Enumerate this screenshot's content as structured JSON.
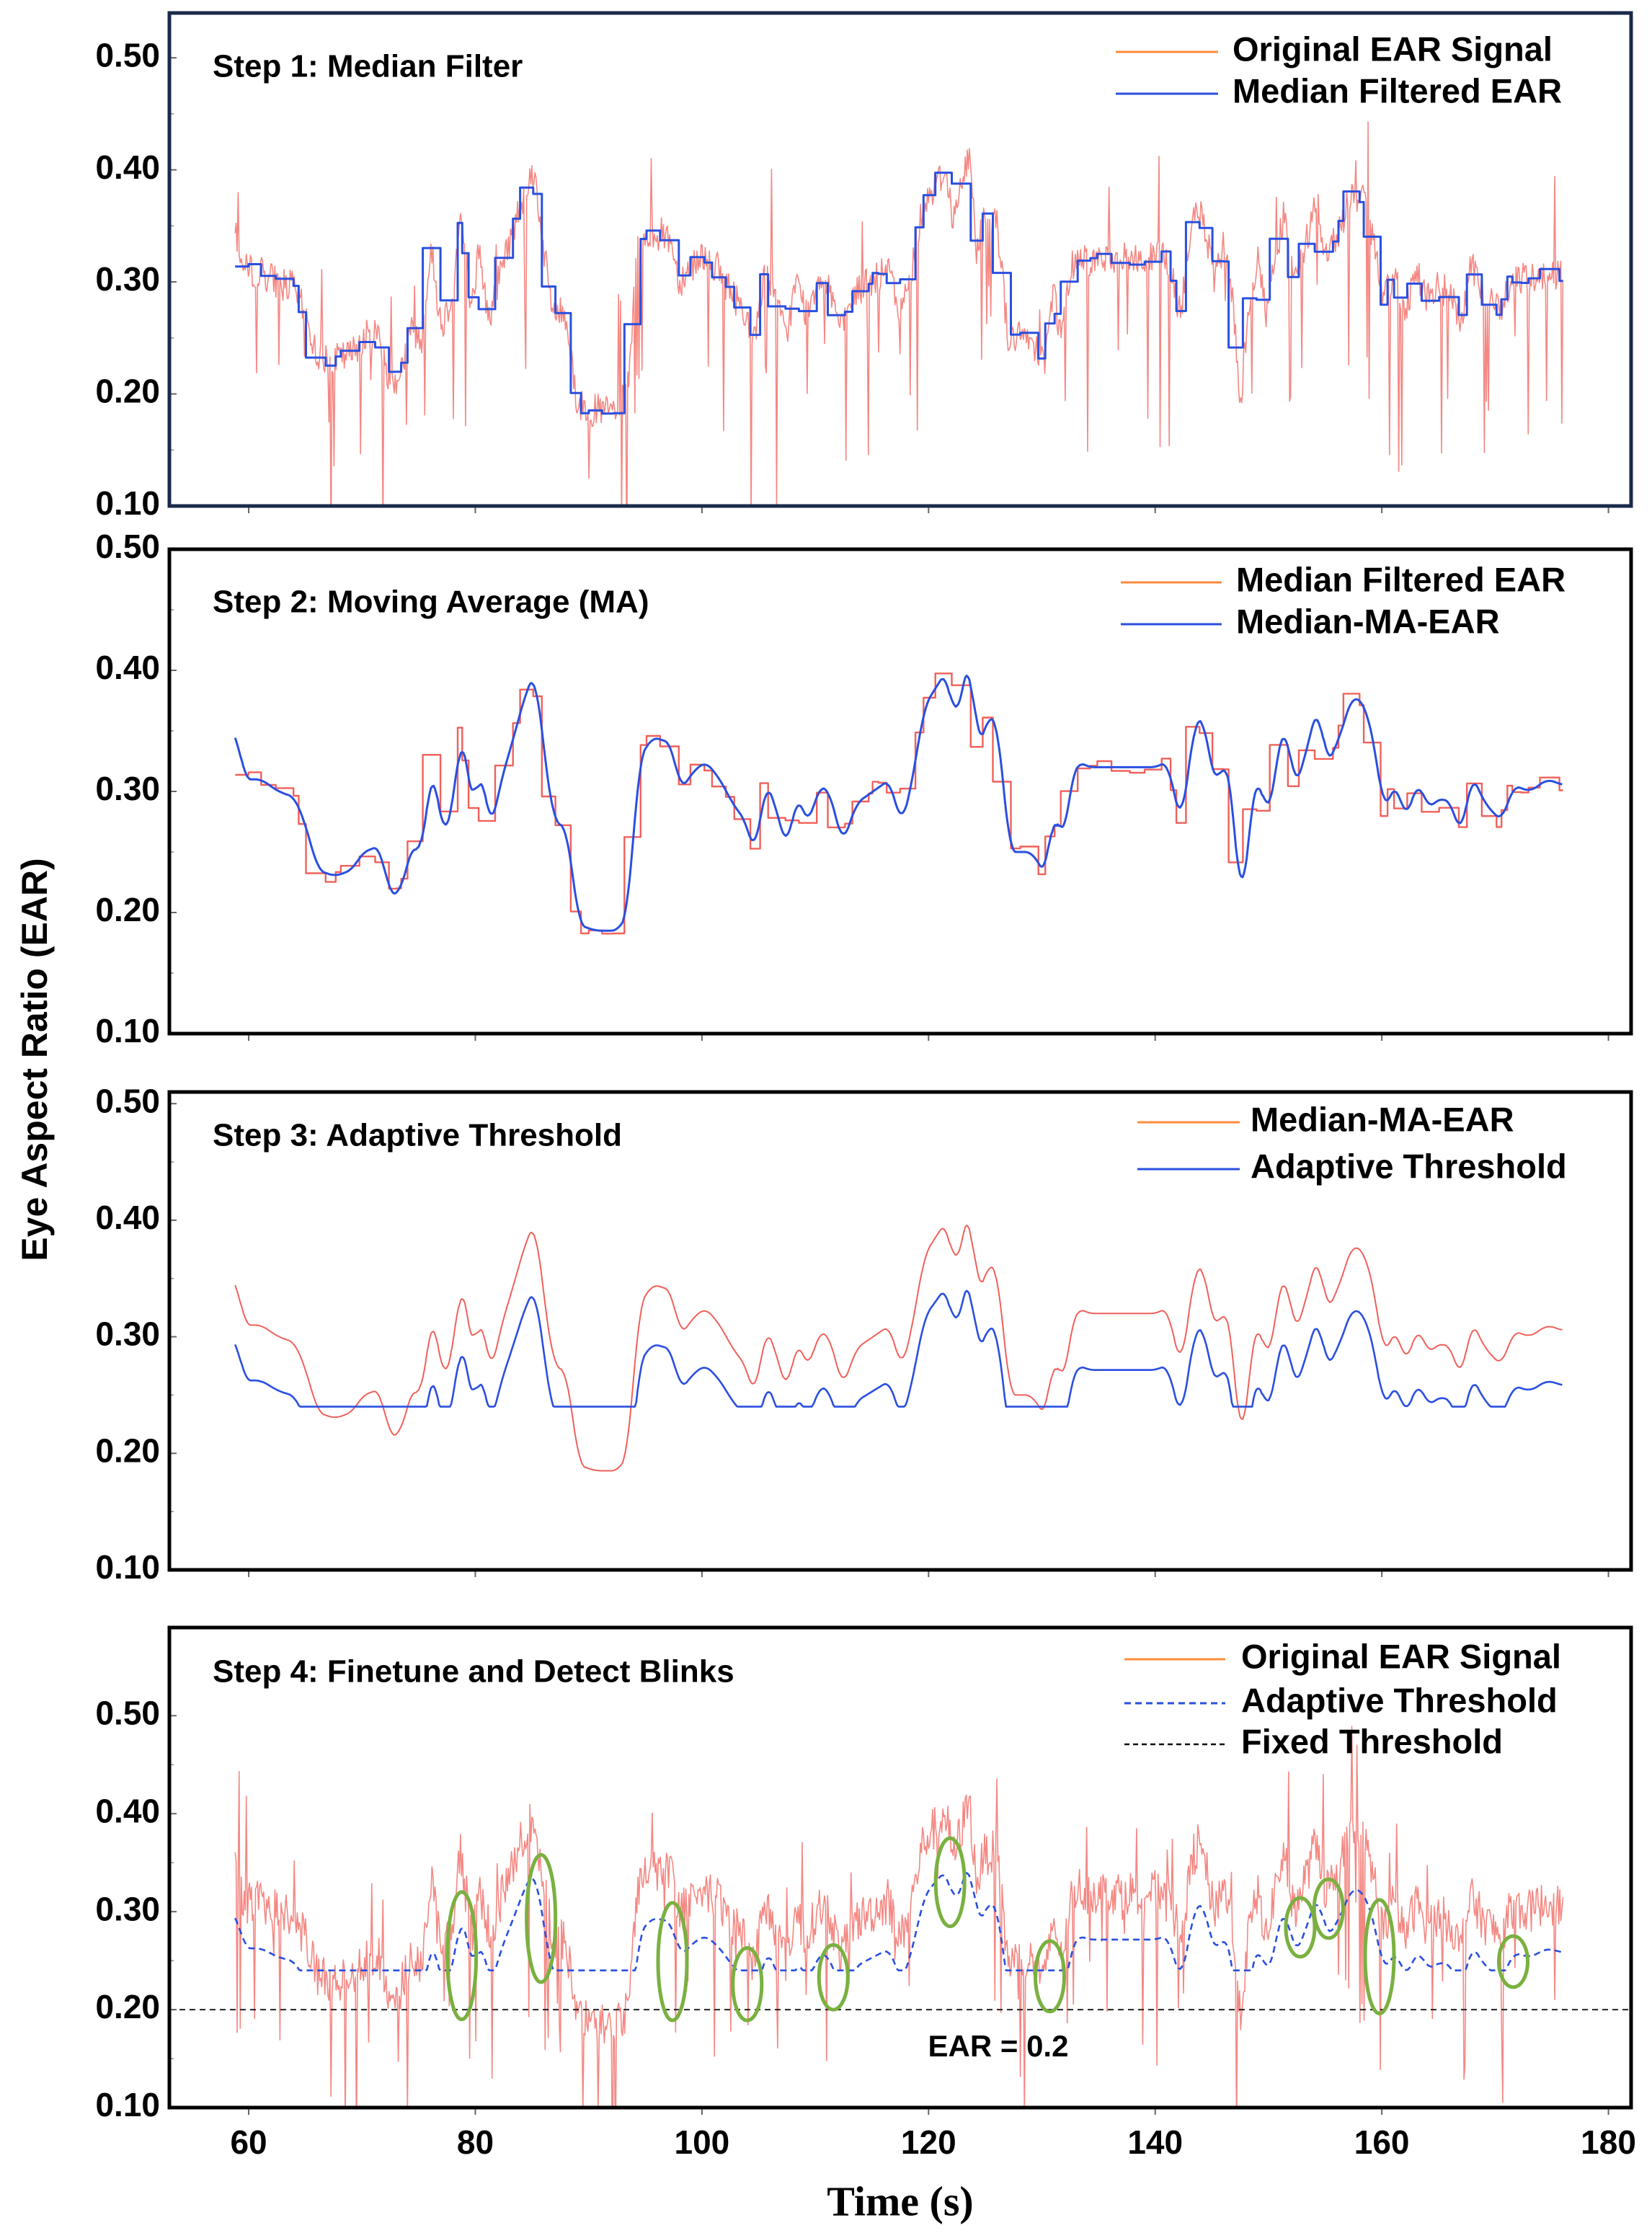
{
  "chart_data": {
    "type": "line",
    "xlabel": "Time (s)",
    "ylabel": "Eye Aspect Ratio (EAR)",
    "xlim": [
      53,
      182
    ],
    "x_ticks": [
      60,
      80,
      100,
      120,
      140,
      160,
      180
    ],
    "x_tick_labels": [
      "60",
      "80",
      "100",
      "120",
      "140",
      "160",
      "180"
    ],
    "colors": {
      "orange": "#ff8c3c",
      "red": "#f0605a",
      "blue": "#2a4fe0",
      "green": "#7ab040",
      "frame": "#1a2a4a"
    },
    "panels": [
      {
        "title": "Step 1: Median Filter",
        "ylim": [
          0.1,
          0.54
        ],
        "y_ticks": [
          0.1,
          0.2,
          0.3,
          0.4,
          0.5
        ],
        "y_tick_labels": [
          "0.10",
          "0.20",
          "0.30",
          "0.40",
          "0.50"
        ],
        "legend": [
          "Original EAR Signal",
          "Median Filtered EAR"
        ],
        "series": [
          {
            "name": "Original EAR Signal",
            "style": "noisy",
            "noise": 0.03
          },
          {
            "name": "Median Filtered EAR",
            "style": "step"
          }
        ]
      },
      {
        "title": "Step 2: Moving Average (MA)",
        "ylim": [
          0.1,
          0.5
        ],
        "y_ticks": [
          0.1,
          0.2,
          0.3,
          0.4,
          0.5
        ],
        "y_tick_labels": [
          "0.10",
          "0.20",
          "0.30",
          "0.40",
          "0.50"
        ],
        "legend": [
          "Median Filtered EAR",
          "Median-MA-EAR"
        ],
        "series": [
          {
            "name": "Median Filtered EAR",
            "style": "step"
          },
          {
            "name": "Median-MA-EAR",
            "style": "smooth"
          }
        ]
      },
      {
        "title": "Step 3: Adaptive Threshold",
        "ylim": [
          0.1,
          0.51
        ],
        "y_ticks": [
          0.1,
          0.2,
          0.3,
          0.4,
          0.5
        ],
        "y_tick_labels": [
          "0.10",
          "0.20",
          "0.30",
          "0.40",
          "0.50"
        ],
        "legend": [
          "Median-MA-EAR",
          "Adaptive Threshold"
        ],
        "series": [
          {
            "name": "Median-MA-EAR",
            "style": "smooth"
          },
          {
            "name": "Adaptive Threshold",
            "style": "threshold",
            "floor": 0.24
          }
        ]
      },
      {
        "title": "Step 4: Finetune and Detect Blinks",
        "ylim": [
          0.1,
          0.59
        ],
        "y_ticks": [
          0.1,
          0.2,
          0.3,
          0.4,
          0.5
        ],
        "y_tick_labels": [
          "0.10",
          "0.20",
          "0.30",
          "0.40",
          "0.50"
        ],
        "legend": [
          "Original EAR Signal",
          "Adaptive Threshold",
          "Fixed Threshold"
        ],
        "series": [
          {
            "name": "Original EAR Signal",
            "style": "noisy",
            "noise": 0.045
          },
          {
            "name": "Adaptive Threshold",
            "style": "threshold",
            "floor": 0.24,
            "dashed": true
          },
          {
            "name": "Fixed Threshold",
            "style": "constant",
            "value": 0.2,
            "dashed": true
          }
        ],
        "annotation": "EAR = 0.2",
        "blinks": [
          {
            "t": 78.8,
            "ear": 0.255,
            "ry": 0.065
          },
          {
            "t": 85.8,
            "ear": 0.293,
            "ry": 0.065
          },
          {
            "t": 97.4,
            "ear": 0.249,
            "ry": 0.06
          },
          {
            "t": 104.0,
            "ear": 0.226,
            "ry": 0.037
          },
          {
            "t": 111.6,
            "ear": 0.233,
            "ry": 0.033
          },
          {
            "t": 121.9,
            "ear": 0.33,
            "ry": 0.045
          },
          {
            "t": 130.7,
            "ear": 0.234,
            "ry": 0.036
          },
          {
            "t": 152.8,
            "ear": 0.284,
            "ry": 0.03
          },
          {
            "t": 155.3,
            "ear": 0.303,
            "ry": 0.03
          },
          {
            "t": 159.8,
            "ear": 0.254,
            "ry": 0.058
          },
          {
            "t": 171.6,
            "ear": 0.249,
            "ry": 0.026
          }
        ]
      }
    ],
    "signal_keypoints": [
      [
        58.8,
        0.35
      ],
      [
        59.5,
        0.31
      ],
      [
        61,
        0.31
      ],
      [
        62.5,
        0.3
      ],
      [
        64,
        0.295
      ],
      [
        65,
        0.27
      ],
      [
        66,
        0.235
      ],
      [
        67.5,
        0.23
      ],
      [
        69,
        0.235
      ],
      [
        70,
        0.25
      ],
      [
        71.5,
        0.255
      ],
      [
        72.3,
        0.215
      ],
      [
        73.2,
        0.215
      ],
      [
        74.5,
        0.26
      ],
      [
        75.2,
        0.245
      ],
      [
        76.1,
        0.33
      ],
      [
        77,
        0.26
      ],
      [
        78,
        0.29
      ],
      [
        78.7,
        0.36
      ],
      [
        79.7,
        0.275
      ],
      [
        80.3,
        0.33
      ],
      [
        81.2,
        0.265
      ],
      [
        82.2,
        0.31
      ],
      [
        83.3,
        0.345
      ],
      [
        84.3,
        0.38
      ],
      [
        85.2,
        0.4
      ],
      [
        86,
        0.33
      ],
      [
        86.8,
        0.275
      ],
      [
        88,
        0.27
      ],
      [
        89,
        0.19
      ],
      [
        90.5,
        0.185
      ],
      [
        92.5,
        0.185
      ],
      [
        93.4,
        0.2
      ],
      [
        94.3,
        0.325
      ],
      [
        95.5,
        0.345
      ],
      [
        97.2,
        0.34
      ],
      [
        98,
        0.3
      ],
      [
        99,
        0.315
      ],
      [
        100.2,
        0.325
      ],
      [
        101.5,
        0.31
      ],
      [
        102.6,
        0.29
      ],
      [
        103.8,
        0.275
      ],
      [
        104.6,
        0.245
      ],
      [
        105.5,
        0.31
      ],
      [
        106.5,
        0.285
      ],
      [
        107.4,
        0.25
      ],
      [
        108.3,
        0.3
      ],
      [
        109.3,
        0.27
      ],
      [
        110.2,
        0.305
      ],
      [
        111.2,
        0.3
      ],
      [
        112.3,
        0.255
      ],
      [
        113.5,
        0.29
      ],
      [
        115,
        0.3
      ],
      [
        116.5,
        0.31
      ],
      [
        117.5,
        0.27
      ],
      [
        118.5,
        0.31
      ],
      [
        119.5,
        0.37
      ],
      [
        120.5,
        0.385
      ],
      [
        121.5,
        0.4
      ],
      [
        122.2,
        0.355
      ],
      [
        122.9,
        0.385
      ],
      [
        123.6,
        0.415
      ],
      [
        124.2,
        0.33
      ],
      [
        125,
        0.36
      ],
      [
        126,
        0.36
      ],
      [
        127,
        0.25
      ],
      [
        129,
        0.25
      ],
      [
        130.3,
        0.23
      ],
      [
        131,
        0.295
      ],
      [
        131.7,
        0.25
      ],
      [
        132.5,
        0.31
      ],
      [
        133.1,
        0.325
      ],
      [
        134,
        0.32
      ],
      [
        140,
        0.32
      ],
      [
        141,
        0.325
      ],
      [
        142.2,
        0.27
      ],
      [
        143.4,
        0.36
      ],
      [
        144.2,
        0.36
      ],
      [
        145.2,
        0.3
      ],
      [
        146,
        0.33
      ],
      [
        146.8,
        0.29
      ],
      [
        147.5,
        0.19
      ],
      [
        148.2,
        0.275
      ],
      [
        149.1,
        0.32
      ],
      [
        149.8,
        0.27
      ],
      [
        150.6,
        0.325
      ],
      [
        151.4,
        0.36
      ],
      [
        152.2,
        0.3
      ],
      [
        153.3,
        0.335
      ],
      [
        154.3,
        0.375
      ],
      [
        155,
        0.32
      ],
      [
        156.2,
        0.345
      ],
      [
        157.3,
        0.38
      ],
      [
        158.5,
        0.37
      ],
      [
        159.4,
        0.33
      ],
      [
        160.1,
        0.28
      ],
      [
        161.1,
        0.31
      ],
      [
        162,
        0.275
      ],
      [
        163.1,
        0.31
      ],
      [
        164,
        0.285
      ],
      [
        165,
        0.295
      ],
      [
        166.1,
        0.29
      ],
      [
        166.9,
        0.26
      ],
      [
        167.8,
        0.315
      ],
      [
        169,
        0.29
      ],
      [
        170.5,
        0.275
      ],
      [
        171.5,
        0.305
      ],
      [
        173,
        0.3
      ],
      [
        174.5,
        0.31
      ],
      [
        176,
        0.305
      ]
    ]
  }
}
